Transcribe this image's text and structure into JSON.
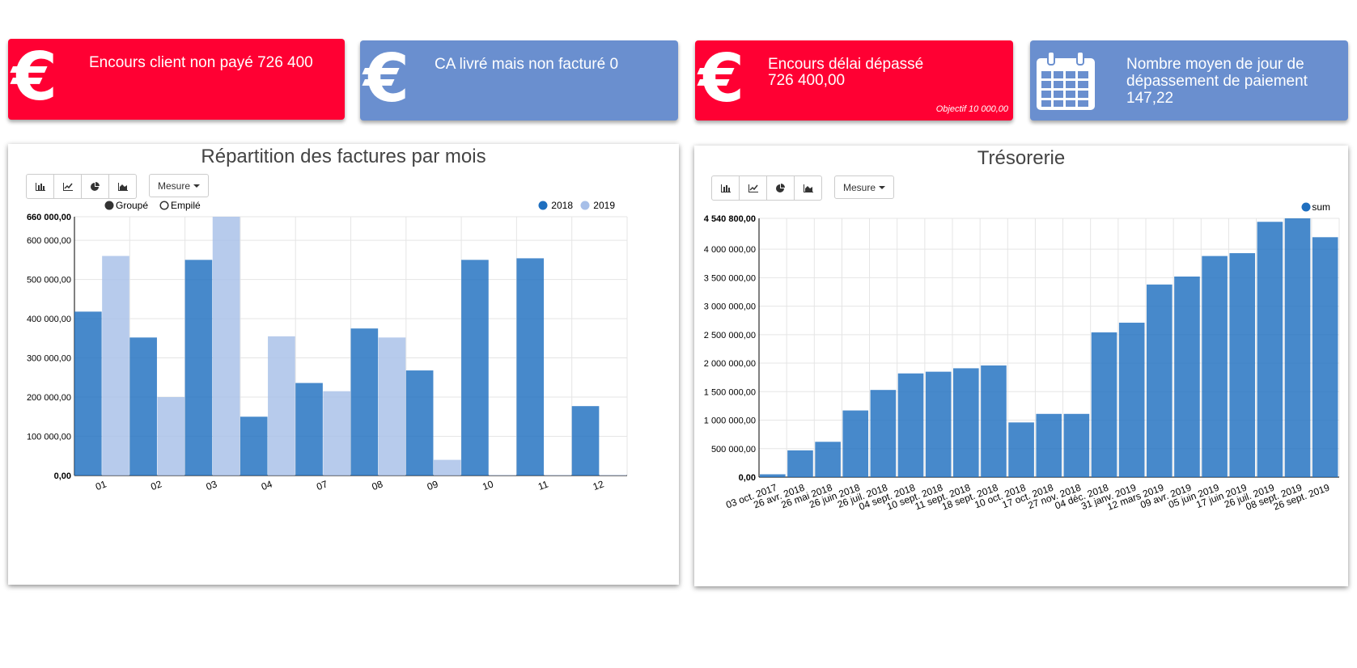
{
  "kpis": [
    {
      "title": "Encours client non payé 726 400",
      "value": "",
      "objective": "",
      "icon": "euro-icon",
      "color": "#FF0033"
    },
    {
      "title": "CA livré mais non facturé 0",
      "value": "",
      "objective": "",
      "icon": "euro-icon",
      "color": "#6A8FCF"
    },
    {
      "title": "Encours délai dépassé",
      "value": "726 400,00",
      "objective": "Objectif 10 000,00",
      "icon": "euro-icon",
      "color": "#FF0033"
    },
    {
      "title": "Nombre moyen de jour de dépassement de paiement",
      "value": "147,22",
      "objective": "",
      "icon": "calendar-icon",
      "color": "#6A8FCF"
    }
  ],
  "toolbar": {
    "bar_icon": "bar-chart-icon",
    "line_icon": "line-chart-icon",
    "pie_icon": "pie-chart-icon",
    "area_icon": "area-chart-icon",
    "measure_label": "Mesure"
  },
  "chart_data": [
    {
      "type": "bar",
      "title": "Répartition des factures par mois",
      "categories": [
        "01",
        "02",
        "03",
        "04",
        "07",
        "08",
        "09",
        "10",
        "11",
        "12"
      ],
      "series": [
        {
          "name": "2018",
          "color": "#1F6FBF",
          "values": [
            418000,
            352000,
            550000,
            150000,
            236000,
            375000,
            268000,
            550000,
            554000,
            177000
          ]
        },
        {
          "name": "2019",
          "color": "#A7BFE8",
          "values": [
            560000,
            200000,
            660000,
            355000,
            215000,
            352000,
            40000,
            1200,
            1200,
            1200
          ]
        }
      ],
      "mode_options": [
        "Groupé",
        "Empilé"
      ],
      "mode_selected": "Groupé",
      "ylim": [
        0,
        660000
      ],
      "yticks": [
        "0,00",
        "100 000,00",
        "200 000,00",
        "300 000,00",
        "400 000,00",
        "500 000,00",
        "600 000,00",
        "660 000,00"
      ],
      "ytick_values": [
        0,
        100000,
        200000,
        300000,
        400000,
        500000,
        600000,
        660000
      ],
      "grid": true,
      "legend_position": "top-right"
    },
    {
      "type": "bar",
      "title": "Trésorerie",
      "categories": [
        "03 oct. 2017",
        "26 avr. 2018",
        "26 mai 2018",
        "26 juin 2018",
        "26 juil. 2018",
        "04 sept. 2018",
        "10 sept. 2018",
        "11 sept. 2018",
        "18 sept. 2018",
        "10 oct. 2018",
        "17 oct. 2018",
        "27 nov. 2018",
        "04 déc. 2018",
        "31 janv. 2019",
        "12 mars 2019",
        "09 avr. 2019",
        "05 juin 2019",
        "17 juin 2019",
        "26 juil. 2019",
        "08 sept. 2019",
        "26 sept. 2019"
      ],
      "series": [
        {
          "name": "sum",
          "color": "#1F6FBF",
          "values": [
            50000,
            470000,
            620000,
            1170000,
            1530000,
            1820000,
            1850000,
            1910000,
            1960000,
            960000,
            1110000,
            1110000,
            2540000,
            2710000,
            3380000,
            3520000,
            3880000,
            3930000,
            4480000,
            4540800,
            4210000
          ]
        }
      ],
      "ylim": [
        0,
        4540800
      ],
      "yticks": [
        "0,00",
        "500 000,00",
        "1 000 000,00",
        "1 500 000,00",
        "2 000 000,00",
        "2 500 000,00",
        "3 000 000,00",
        "3 500 000,00",
        "4 000 000,00",
        "4 540 800,00"
      ],
      "ytick_values": [
        0,
        500000,
        1000000,
        1500000,
        2000000,
        2500000,
        3000000,
        3500000,
        4000000,
        4540800
      ],
      "grid": true,
      "legend_position": "top-right"
    }
  ]
}
